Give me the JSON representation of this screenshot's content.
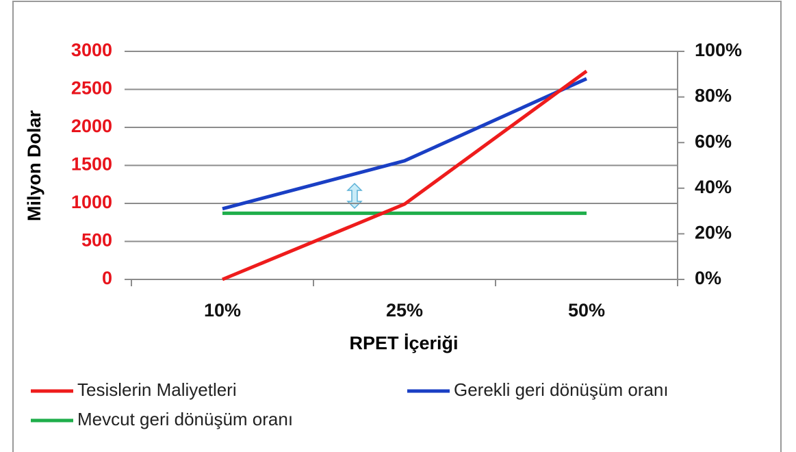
{
  "chart_data": {
    "type": "line",
    "categories": [
      "10%",
      "25%",
      "50%"
    ],
    "xlabel": "RPET İçeriği",
    "ylabel": "Milyon Dolar",
    "ylim": [
      0,
      3000
    ],
    "yticks": [
      0,
      500,
      1000,
      1500,
      2000,
      2500,
      3000
    ],
    "y2lim": [
      0,
      100
    ],
    "y2ticks": [
      {
        "value": 0,
        "label": "0%"
      },
      {
        "value": 20,
        "label": "20%"
      },
      {
        "value": 40,
        "label": "40%"
      },
      {
        "value": 60,
        "label": "60%"
      },
      {
        "value": 80,
        "label": "80%"
      },
      {
        "value": 100,
        "label": "100%"
      }
    ],
    "grid": true,
    "legend": "bottom",
    "series": [
      {
        "name": "Tesislerin Maliyetleri",
        "color": "#ee1c1c",
        "values": [
          0,
          990,
          2740
        ]
      },
      {
        "name": "Gerekli geri dönüşüm oranı",
        "color": "#1a3fc4",
        "axis": "y2",
        "values": [
          31,
          52,
          88
        ]
      },
      {
        "name": "Mevcut geri dönüşüm oranı",
        "color": "#1fae4b",
        "axis": "y2",
        "values": [
          29,
          29,
          29
        ]
      }
    ]
  }
}
